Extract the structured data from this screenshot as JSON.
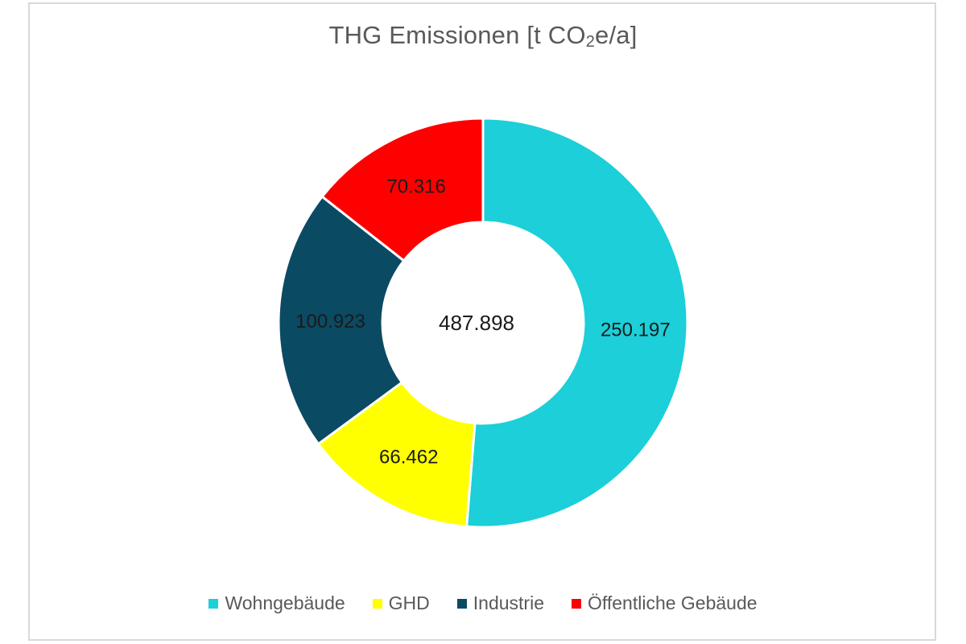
{
  "chart_data": {
    "type": "pie",
    "subtype": "donut",
    "title": "THG Emissionen [t CO₂e/a]",
    "center_label": "487.898",
    "categories": [
      "Wohngebäude",
      "GHD",
      "Industrie",
      "Öffentliche Gebäude"
    ],
    "values": [
      250.197,
      66.462,
      100.923,
      70.316
    ],
    "value_labels": [
      "250.197",
      "66.462",
      "100.923",
      "70.316"
    ],
    "colors": [
      "#1ccfd8",
      "#ffff00",
      "#0b4a63",
      "#ff0000"
    ],
    "total": 487.898,
    "unit": "t CO₂e/a",
    "legend_position": "bottom"
  },
  "title": {
    "main": "THG Emissionen [t CO",
    "sub": "2",
    "tail": "e/a]"
  },
  "center_label": "487.898",
  "legend": [
    {
      "label": "Wohngebäude",
      "color": "#1ccfd8"
    },
    {
      "label": "GHD",
      "color": "#ffff00"
    },
    {
      "label": "Industrie",
      "color": "#0b4a63"
    },
    {
      "label": "Öffentliche Gebäude",
      "color": "#ff0000"
    }
  ]
}
